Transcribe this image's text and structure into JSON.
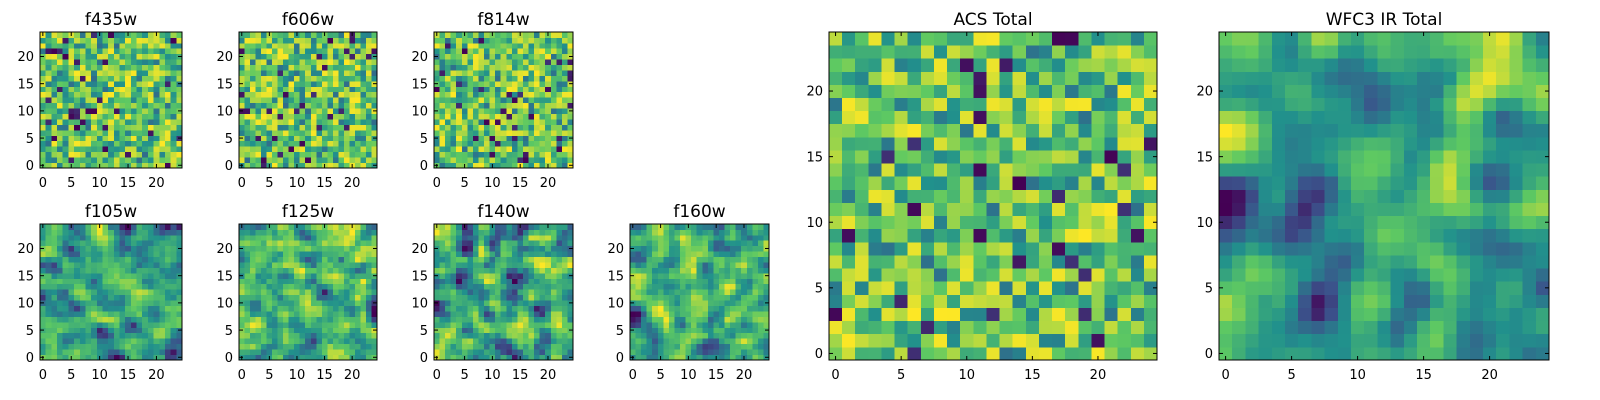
{
  "colormap": "viridis",
  "colors": {
    "viridis_stops": [
      "#440154",
      "#3b528b",
      "#21918c",
      "#5ec962",
      "#fde725"
    ]
  },
  "chart_data": [
    {
      "type": "heatmap",
      "title": "f435w",
      "grid": [
        25,
        25
      ],
      "seed": 11,
      "smooth": 0,
      "xlim": [
        -0.5,
        24.5
      ],
      "ylim": [
        -0.5,
        24.5
      ],
      "xticks": [
        0,
        5,
        10,
        15,
        20
      ],
      "yticks": [
        0,
        5,
        10,
        15,
        20
      ]
    },
    {
      "type": "heatmap",
      "title": "f606w",
      "grid": [
        25,
        25
      ],
      "seed": 23,
      "smooth": 0,
      "xlim": [
        -0.5,
        24.5
      ],
      "ylim": [
        -0.5,
        24.5
      ],
      "xticks": [
        0,
        5,
        10,
        15,
        20
      ],
      "yticks": [
        0,
        5,
        10,
        15,
        20
      ]
    },
    {
      "type": "heatmap",
      "title": "f814w",
      "grid": [
        25,
        25
      ],
      "seed": 37,
      "smooth": 0,
      "xlim": [
        -0.5,
        24.5
      ],
      "ylim": [
        -0.5,
        24.5
      ],
      "xticks": [
        0,
        5,
        10,
        15,
        20
      ],
      "yticks": [
        0,
        5,
        10,
        15,
        20
      ]
    },
    {
      "type": "heatmap",
      "title": "f105w",
      "grid": [
        25,
        25
      ],
      "seed": 41,
      "smooth": 1,
      "xlim": [
        -0.5,
        24.5
      ],
      "ylim": [
        -0.5,
        24.5
      ],
      "xticks": [
        0,
        5,
        10,
        15,
        20
      ],
      "yticks": [
        0,
        5,
        10,
        15,
        20
      ]
    },
    {
      "type": "heatmap",
      "title": "f125w",
      "grid": [
        25,
        25
      ],
      "seed": 53,
      "smooth": 1,
      "xlim": [
        -0.5,
        24.5
      ],
      "ylim": [
        -0.5,
        24.5
      ],
      "xticks": [
        0,
        5,
        10,
        15,
        20
      ],
      "yticks": [
        0,
        5,
        10,
        15,
        20
      ]
    },
    {
      "type": "heatmap",
      "title": "f140w",
      "grid": [
        25,
        25
      ],
      "seed": 67,
      "smooth": 1,
      "xlim": [
        -0.5,
        24.5
      ],
      "ylim": [
        -0.5,
        24.5
      ],
      "xticks": [
        0,
        5,
        10,
        15,
        20
      ],
      "yticks": [
        0,
        5,
        10,
        15,
        20
      ]
    },
    {
      "type": "heatmap",
      "title": "f160w",
      "grid": [
        25,
        25
      ],
      "seed": 79,
      "smooth": 1,
      "xlim": [
        -0.5,
        24.5
      ],
      "ylim": [
        -0.5,
        24.5
      ],
      "xticks": [
        0,
        5,
        10,
        15,
        20
      ],
      "yticks": [
        0,
        5,
        10,
        15,
        20
      ]
    },
    {
      "type": "heatmap",
      "title": "ACS Total",
      "grid": [
        25,
        25
      ],
      "seed": 97,
      "smooth": 0,
      "xlim": [
        -0.5,
        24.5
      ],
      "ylim": [
        -0.5,
        24.5
      ],
      "xticks": [
        0,
        5,
        10,
        15,
        20
      ],
      "yticks": [
        0,
        5,
        10,
        15,
        20
      ]
    },
    {
      "type": "heatmap",
      "title": "WFC3 IR Total",
      "grid": [
        25,
        25
      ],
      "seed": 113,
      "smooth": 2,
      "xlim": [
        -0.5,
        24.5
      ],
      "ylim": [
        -0.5,
        24.5
      ],
      "xticks": [
        0,
        5,
        10,
        15,
        20
      ],
      "yticks": [
        0,
        5,
        10,
        15,
        20
      ]
    }
  ]
}
